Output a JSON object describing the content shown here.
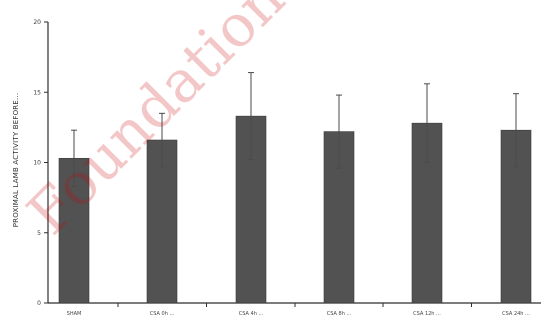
{
  "chart_data": {
    "type": "bar",
    "ylabel": "PROXIMAL LAMB ACTIVITY BEFORE...",
    "ylim": [
      0,
      20
    ],
    "yticks": [
      0,
      5,
      10,
      15,
      20
    ],
    "categories": [
      "SHAM",
      "CSA 0h ...",
      "CSA 4h ...",
      "CSA 8h ...",
      "CSA 12h ...",
      "CSA 24h ..."
    ],
    "values": [
      10.3,
      11.6,
      13.3,
      12.2,
      12.8,
      12.3
    ],
    "errors": [
      2.0,
      1.9,
      3.1,
      2.6,
      2.8,
      2.6
    ],
    "bar_color": "#525252",
    "axis_color": "#2e2e2e",
    "grid": false,
    "legend": "none"
  },
  "watermark": {
    "text": "Foundation",
    "color": "#c80000"
  }
}
